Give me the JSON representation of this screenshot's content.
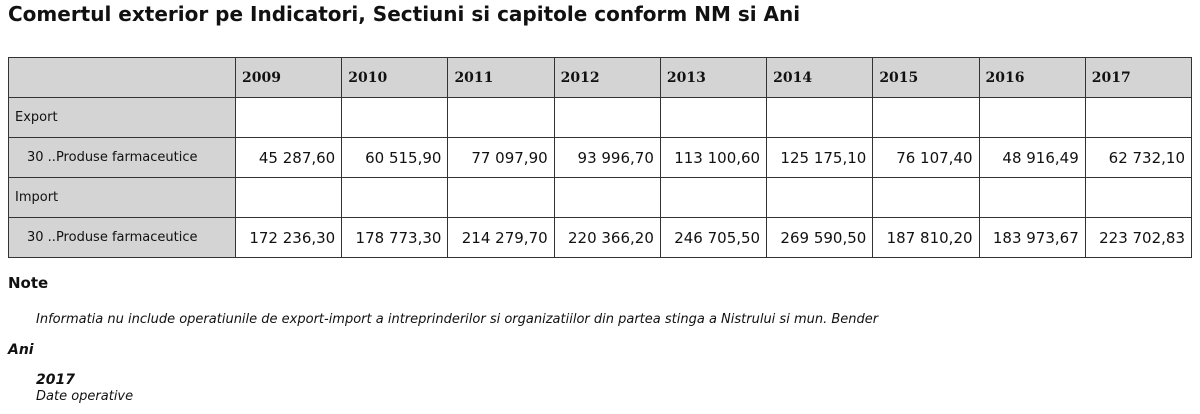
{
  "header": {
    "title": "Comertul exterior pe Indicatori, Sectiuni si capitole conform NM si Ani"
  },
  "table": {
    "columns": [
      "2009",
      "2010",
      "2011",
      "2012",
      "2013",
      "2014",
      "2015",
      "2016",
      "2017"
    ],
    "rows": [
      [
        "Export"
      ],
      [
        "30 ..Produse farmaceutice",
        "45 287,60",
        "60 515,90",
        "77 097,90",
        "93 996,70",
        "113 100,60",
        "125 175,10",
        "76 107,40",
        "48 916,49",
        "62 732,10"
      ],
      [
        "Import"
      ],
      [
        "30 ..Produse farmaceutice",
        "172 236,30",
        "178 773,30",
        "214 279,70",
        "220 366,20",
        "246 705,50",
        "269 590,50",
        "187 810,20",
        "183 973,67",
        "223 702,83"
      ]
    ]
  },
  "note": {
    "heading": "Note",
    "text": "Informatia nu include operatiunile de export-import a intreprinderilor si organizatiilor din partea stinga a Nistrului si mun. Bender"
  },
  "ani": {
    "heading": "Ani",
    "year": "2017",
    "text": "Date operative"
  }
}
